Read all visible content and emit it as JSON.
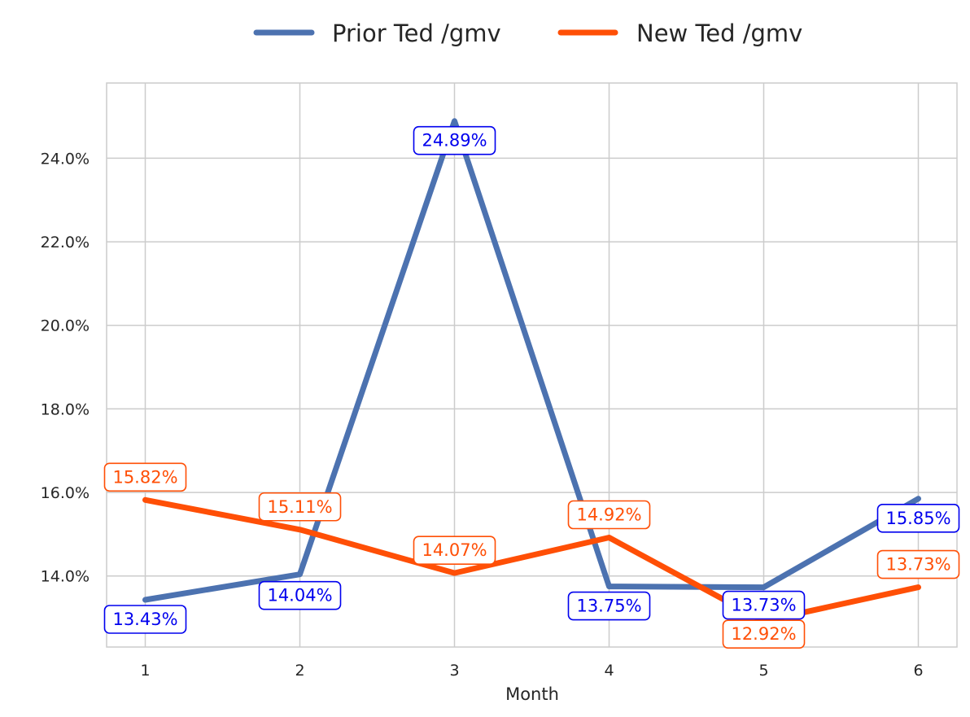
{
  "chart_data": {
    "type": "line",
    "title": "",
    "xlabel": "Month",
    "ylabel": "",
    "x": [
      1,
      2,
      3,
      4,
      5,
      6
    ],
    "xlim": [
      0.75,
      6.25
    ],
    "ylim": [
      12.3,
      25.8
    ],
    "yticks": [
      14.0,
      16.0,
      18.0,
      20.0,
      22.0,
      24.0
    ],
    "ytick_labels": [
      "14.0%",
      "16.0%",
      "18.0%",
      "20.0%",
      "22.0%",
      "24.0%"
    ],
    "xtick_labels": [
      "1",
      "2",
      "3",
      "4",
      "5",
      "6"
    ],
    "grid": true,
    "legend_position": "top-center",
    "series": [
      {
        "name": "Prior Ted /gmv",
        "color": "#4c72b0",
        "label_color": "#0000ee",
        "values": [
          13.43,
          14.04,
          24.89,
          13.75,
          13.73,
          15.85
        ],
        "labels": [
          "13.43%",
          "14.04%",
          "24.89%",
          "13.75%",
          "13.73%",
          "15.85%"
        ]
      },
      {
        "name": "New Ted /gmv",
        "color": "#ff4f06",
        "label_color": "#ff4f06",
        "values": [
          15.82,
          15.11,
          14.07,
          14.92,
          12.92,
          13.73
        ],
        "labels": [
          "15.82%",
          "15.11%",
          "14.07%",
          "14.92%",
          "12.92%",
          "13.73%"
        ]
      }
    ]
  }
}
